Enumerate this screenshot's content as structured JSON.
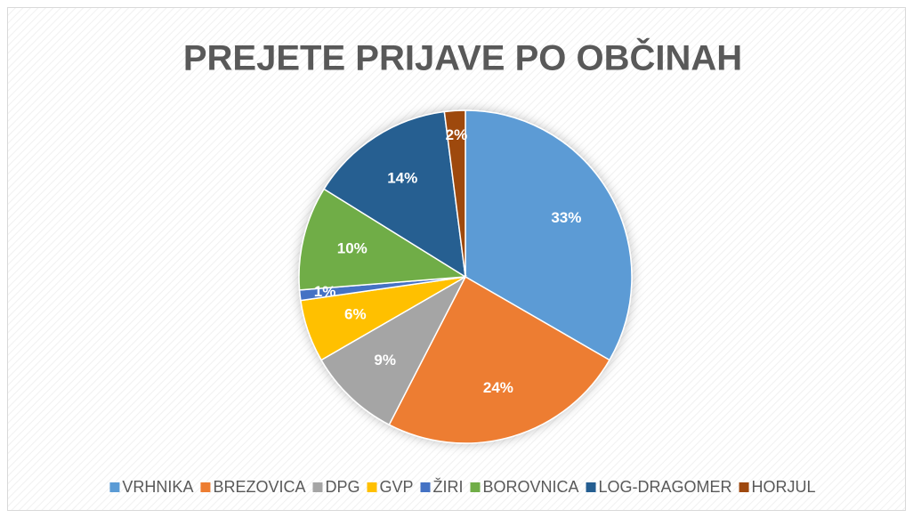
{
  "chart_data": {
    "type": "pie",
    "title": "PREJETE PRIJAVE PO OBČINAH",
    "categories": [
      "VRHNIKA",
      "BREZOVICA",
      "DPG",
      "GVP",
      "ŽIRI",
      "BOROVNICA",
      "LOG-DRAGOMER",
      "HORJUL"
    ],
    "values": [
      33,
      24,
      9,
      6,
      1,
      10,
      14,
      2
    ],
    "value_labels": [
      "33%",
      "24%",
      "9%",
      "6%",
      "1%",
      "10%",
      "14%",
      "2%"
    ],
    "colors": [
      "#5b9bd5",
      "#ed7d31",
      "#a5a5a5",
      "#ffc000",
      "#4472c4",
      "#70ad47",
      "#255e91",
      "#9e480e"
    ],
    "legend": "bottom"
  }
}
